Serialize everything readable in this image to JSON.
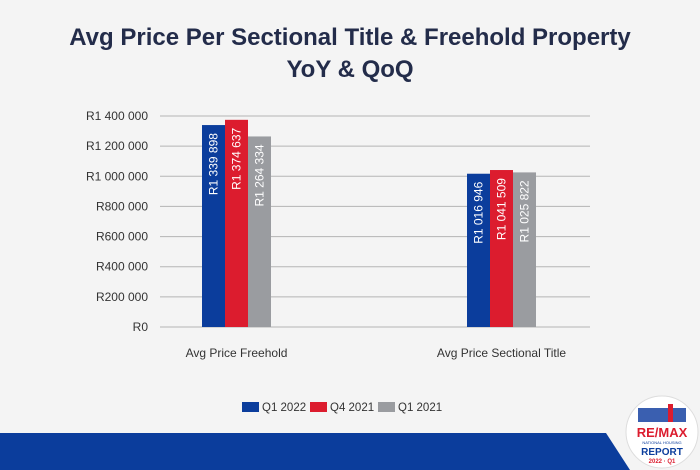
{
  "chart_data": {
    "type": "bar",
    "title": "Avg Price Per Sectional Title & Freehold Property",
    "subtitle": "YoY & QoQ",
    "categories": [
      "Avg Price  Freehold",
      "Avg Price Sectional Title"
    ],
    "series": [
      {
        "name": "Q1 2022",
        "values": [
          1339898,
          1016946
        ],
        "labels": [
          "R1 339 898",
          "R1 016 946"
        ],
        "color": "#0b3d9c"
      },
      {
        "name": "Q4 2021",
        "values": [
          1374637,
          1041509
        ],
        "labels": [
          "R1 374 637",
          "R1 041 509"
        ],
        "color": "#dc1c2e"
      },
      {
        "name": "Q1 2021",
        "values": [
          1264334,
          1025822
        ],
        "labels": [
          "R1 264 334",
          "R1 025 822"
        ],
        "color": "#9a9ca0"
      }
    ],
    "yticks": [
      0,
      200000,
      400000,
      600000,
      800000,
      1000000,
      1200000,
      1400000
    ],
    "ytick_labels": [
      "R0",
      "R200 000",
      "R400 000",
      "R600 000",
      "R800 000",
      "R1 000 000",
      "R1 200 000",
      "R1 400 000"
    ],
    "ylim": [
      0,
      1400000
    ],
    "grid": true,
    "legend": "bottom"
  },
  "footer": {
    "band_color": "#0b3d9c",
    "logo": {
      "brand": "RE/MAX",
      "line2": "NATIONAL HOUSING",
      "line3": "REPORT",
      "line4": "2022 · Q1"
    }
  }
}
